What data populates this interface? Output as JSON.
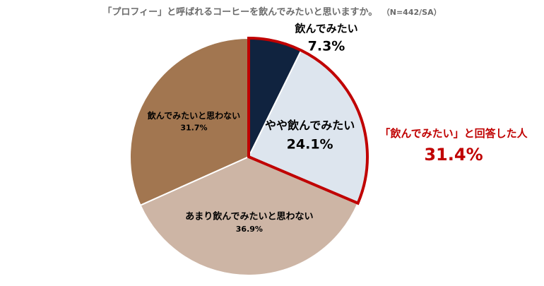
{
  "chart_data": {
    "type": "pie",
    "title": "「プロフィー」と呼ばれるコーヒーを飲んでみたいと思いますか。",
    "note": "（N=442/SA）",
    "slices": [
      {
        "label": "飲んでみたい",
        "value": 7.3,
        "value_label": "7.3%",
        "color": "#10233f",
        "text_color": "#000000"
      },
      {
        "label": "やや飲んでみたい",
        "value": 24.1,
        "value_label": "24.1%",
        "color": "#dde5ee",
        "text_color": "#000000"
      },
      {
        "label": "あまり飲んでみたいと思わない",
        "value": 36.9,
        "value_label": "36.9%",
        "color": "#cdb5a5",
        "text_color": "#000000"
      },
      {
        "label": "飲んでみたいと思わない",
        "value": 31.7,
        "value_label": "31.7%",
        "color": "#a27650",
        "text_color": "#000000"
      }
    ],
    "highlight": {
      "label": "「飲んでみたい」と回答した人",
      "value": 31.4,
      "value_label": "31.4%",
      "color": "#c00000"
    }
  }
}
